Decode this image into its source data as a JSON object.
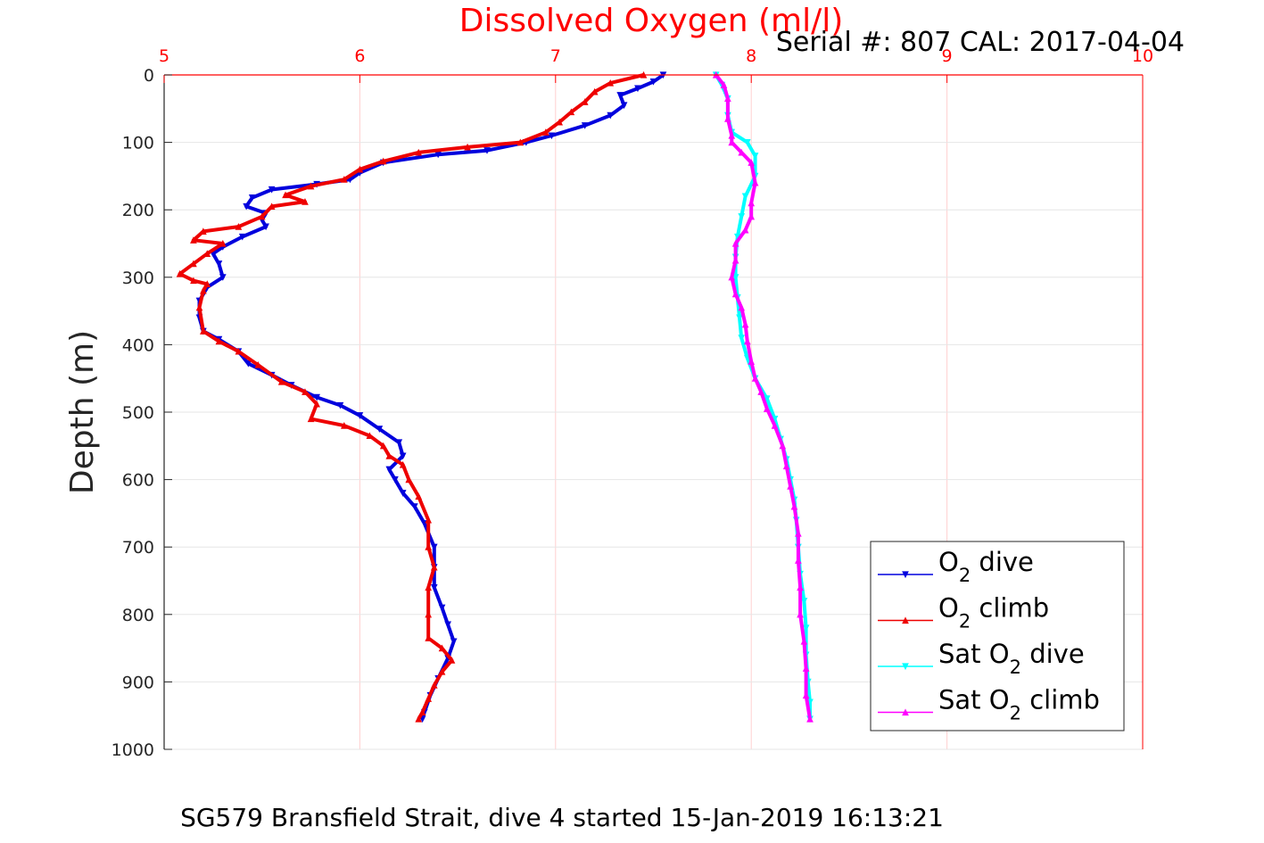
{
  "chart_data": {
    "type": "line",
    "title": "Dissolved Oxygen (ml/l)",
    "annotation": "Serial #: 807  CAL: 2017-04-04",
    "ylabel": "Depth (m)",
    "caption": "SG579 Bransfield Strait, dive 4 started 15-Jan-2019 16:13:21",
    "xlim": [
      5,
      10
    ],
    "ylim": [
      0,
      1000
    ],
    "y_reversed": true,
    "x_axis_location": "top",
    "x_ticks": [
      5,
      6,
      7,
      8,
      9,
      10
    ],
    "y_ticks": [
      0,
      100,
      200,
      300,
      400,
      500,
      600,
      700,
      800,
      900,
      1000
    ],
    "grid": true,
    "legend_location": "bottom-right",
    "series": [
      {
        "legend_main": "O",
        "legend_sub": "2",
        "legend_suffix": " dive",
        "legend_prefix": "",
        "color": "#0000dd",
        "marker": "down-triangle",
        "points": [
          [
            7.55,
            0
          ],
          [
            7.5,
            10
          ],
          [
            7.42,
            20
          ],
          [
            7.33,
            30
          ],
          [
            7.35,
            45
          ],
          [
            7.28,
            60
          ],
          [
            7.15,
            75
          ],
          [
            6.98,
            90
          ],
          [
            6.85,
            100
          ],
          [
            6.65,
            112
          ],
          [
            6.4,
            118
          ],
          [
            6.12,
            130
          ],
          [
            6.0,
            145
          ],
          [
            5.95,
            155
          ],
          [
            5.78,
            162
          ],
          [
            5.55,
            170
          ],
          [
            5.45,
            182
          ],
          [
            5.42,
            195
          ],
          [
            5.52,
            205
          ],
          [
            5.5,
            215
          ],
          [
            5.52,
            225
          ],
          [
            5.4,
            240
          ],
          [
            5.3,
            255
          ],
          [
            5.25,
            265
          ],
          [
            5.28,
            280
          ],
          [
            5.3,
            300
          ],
          [
            5.22,
            315
          ],
          [
            5.18,
            335
          ],
          [
            5.18,
            360
          ],
          [
            5.2,
            380
          ],
          [
            5.28,
            392
          ],
          [
            5.38,
            410
          ],
          [
            5.43,
            428
          ],
          [
            5.55,
            445
          ],
          [
            5.65,
            460
          ],
          [
            5.78,
            478
          ],
          [
            5.9,
            490
          ],
          [
            6.0,
            505
          ],
          [
            6.1,
            525
          ],
          [
            6.2,
            545
          ],
          [
            6.22,
            565
          ],
          [
            6.15,
            585
          ],
          [
            6.18,
            600
          ],
          [
            6.22,
            620
          ],
          [
            6.28,
            640
          ],
          [
            6.33,
            665
          ],
          [
            6.38,
            700
          ],
          [
            6.38,
            730
          ],
          [
            6.38,
            760
          ],
          [
            6.42,
            790
          ],
          [
            6.45,
            815
          ],
          [
            6.48,
            840
          ],
          [
            6.45,
            865
          ],
          [
            6.4,
            895
          ],
          [
            6.36,
            920
          ],
          [
            6.33,
            945
          ],
          [
            6.32,
            955
          ]
        ]
      },
      {
        "legend_main": "O",
        "legend_sub": "2",
        "legend_suffix": " climb",
        "legend_prefix": "",
        "color": "#ee0000",
        "marker": "up-triangle",
        "points": [
          [
            7.45,
            0
          ],
          [
            7.28,
            12
          ],
          [
            7.2,
            25
          ],
          [
            7.15,
            40
          ],
          [
            7.08,
            55
          ],
          [
            7.02,
            70
          ],
          [
            6.95,
            85
          ],
          [
            6.82,
            100
          ],
          [
            6.55,
            107
          ],
          [
            6.3,
            115
          ],
          [
            6.12,
            128
          ],
          [
            6.0,
            140
          ],
          [
            5.92,
            155
          ],
          [
            5.75,
            165
          ],
          [
            5.62,
            178
          ],
          [
            5.72,
            188
          ],
          [
            5.55,
            195
          ],
          [
            5.5,
            210
          ],
          [
            5.38,
            225
          ],
          [
            5.2,
            232
          ],
          [
            5.15,
            245
          ],
          [
            5.3,
            250
          ],
          [
            5.22,
            265
          ],
          [
            5.15,
            280
          ],
          [
            5.08,
            295
          ],
          [
            5.15,
            305
          ],
          [
            5.22,
            310
          ],
          [
            5.2,
            320
          ],
          [
            5.18,
            345
          ],
          [
            5.2,
            380
          ],
          [
            5.28,
            395
          ],
          [
            5.38,
            410
          ],
          [
            5.48,
            430
          ],
          [
            5.6,
            455
          ],
          [
            5.72,
            470
          ],
          [
            5.78,
            488
          ],
          [
            5.75,
            510
          ],
          [
            5.92,
            520
          ],
          [
            6.05,
            535
          ],
          [
            6.12,
            550
          ],
          [
            6.15,
            565
          ],
          [
            6.22,
            578
          ],
          [
            6.25,
            600
          ],
          [
            6.3,
            625
          ],
          [
            6.35,
            660
          ],
          [
            6.35,
            700
          ],
          [
            6.38,
            730
          ],
          [
            6.35,
            760
          ],
          [
            6.35,
            800
          ],
          [
            6.35,
            835
          ],
          [
            6.42,
            850
          ],
          [
            6.47,
            868
          ],
          [
            6.42,
            885
          ],
          [
            6.38,
            905
          ],
          [
            6.35,
            925
          ],
          [
            6.32,
            945
          ],
          [
            6.3,
            955
          ]
        ]
      },
      {
        "legend_main": "O",
        "legend_sub": "2",
        "legend_suffix": " dive",
        "legend_prefix": "Sat ",
        "color": "#00ffff",
        "marker": "down-triangle",
        "points": [
          [
            7.82,
            0
          ],
          [
            7.85,
            15
          ],
          [
            7.88,
            35
          ],
          [
            7.88,
            60
          ],
          [
            7.9,
            85
          ],
          [
            7.98,
            100
          ],
          [
            8.02,
            120
          ],
          [
            8.02,
            150
          ],
          [
            7.97,
            180
          ],
          [
            7.95,
            210
          ],
          [
            7.93,
            240
          ],
          [
            7.92,
            270
          ],
          [
            7.92,
            300
          ],
          [
            7.93,
            330
          ],
          [
            7.94,
            360
          ],
          [
            7.95,
            390
          ],
          [
            7.98,
            420
          ],
          [
            8.02,
            450
          ],
          [
            8.08,
            480
          ],
          [
            8.12,
            510
          ],
          [
            8.15,
            540
          ],
          [
            8.18,
            570
          ],
          [
            8.2,
            600
          ],
          [
            8.22,
            630
          ],
          [
            8.23,
            660
          ],
          [
            8.24,
            700
          ],
          [
            8.25,
            740
          ],
          [
            8.27,
            780
          ],
          [
            8.28,
            820
          ],
          [
            8.28,
            860
          ],
          [
            8.29,
            900
          ],
          [
            8.3,
            930
          ],
          [
            8.3,
            955
          ]
        ]
      },
      {
        "legend_main": "O",
        "legend_sub": "2",
        "legend_suffix": " climb",
        "legend_prefix": "Sat ",
        "color": "#ff00ff",
        "marker": "up-triangle",
        "points": [
          [
            7.82,
            0
          ],
          [
            7.86,
            15
          ],
          [
            7.88,
            35
          ],
          [
            7.88,
            65
          ],
          [
            7.9,
            90
          ],
          [
            7.9,
            100
          ],
          [
            7.95,
            115
          ],
          [
            8.0,
            130
          ],
          [
            8.02,
            160
          ],
          [
            8.0,
            190
          ],
          [
            8.0,
            210
          ],
          [
            7.97,
            230
          ],
          [
            7.92,
            250
          ],
          [
            7.92,
            275
          ],
          [
            7.9,
            300
          ],
          [
            7.92,
            325
          ],
          [
            7.95,
            345
          ],
          [
            7.97,
            370
          ],
          [
            7.98,
            395
          ],
          [
            8.0,
            425
          ],
          [
            8.02,
            450
          ],
          [
            8.05,
            470
          ],
          [
            8.08,
            495
          ],
          [
            8.12,
            520
          ],
          [
            8.16,
            550
          ],
          [
            8.18,
            580
          ],
          [
            8.2,
            610
          ],
          [
            8.22,
            640
          ],
          [
            8.24,
            680
          ],
          [
            8.24,
            720
          ],
          [
            8.25,
            760
          ],
          [
            8.25,
            800
          ],
          [
            8.27,
            840
          ],
          [
            8.28,
            880
          ],
          [
            8.28,
            920
          ],
          [
            8.3,
            955
          ]
        ]
      }
    ]
  }
}
